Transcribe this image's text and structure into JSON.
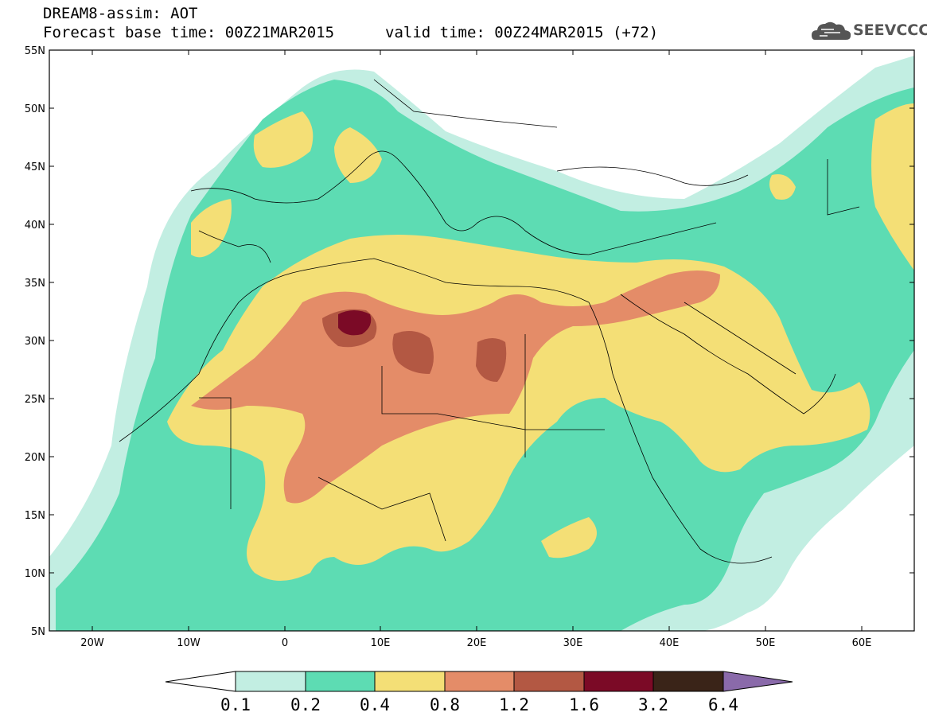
{
  "header": {
    "line1": "DREAM8-assim: AOT",
    "line2": "Forecast base time: 00Z21MAR2015",
    "valid": "valid time: 00Z24MAR2015 (+72)",
    "logo_text": "SEEVCCC"
  },
  "map": {
    "lat_labels": [
      "55N",
      "50N",
      "45N",
      "40N",
      "35N",
      "30N",
      "25N",
      "20N",
      "15N",
      "10N",
      "5N"
    ],
    "lon_labels": [
      "20W",
      "10W",
      "0",
      "10E",
      "20E",
      "30E",
      "40E",
      "50E",
      "60E"
    ]
  },
  "colorbar": {
    "labels": [
      "0.1",
      "0.2",
      "0.4",
      "0.8",
      "1.2",
      "1.6",
      "3.2",
      "6.4"
    ],
    "colors": [
      "#ffffff",
      "#c2eee2",
      "#5ddcb3",
      "#f4df76",
      "#e48c68",
      "#b35843",
      "#7b0a26",
      "#3a2418",
      "#8a6aaa"
    ]
  }
}
